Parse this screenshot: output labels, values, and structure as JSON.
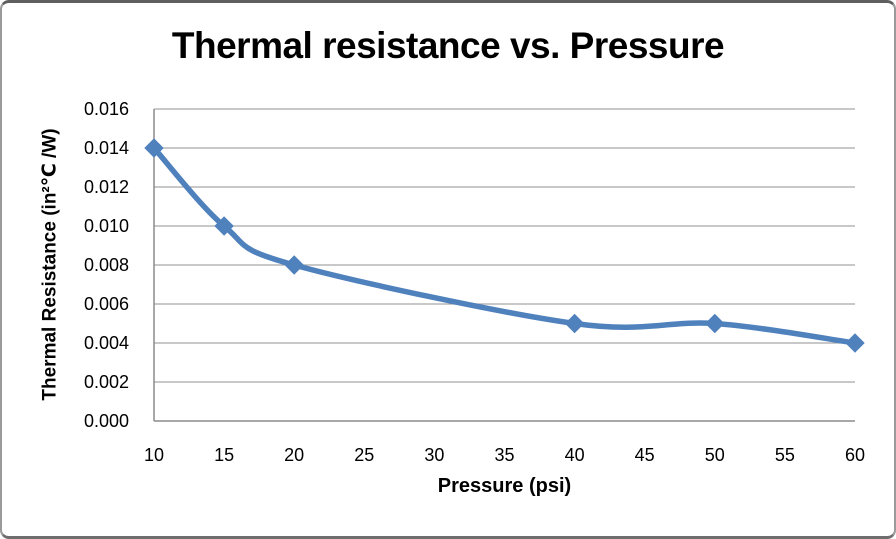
{
  "chart_data": {
    "type": "line",
    "title": "Thermal resistance vs. Pressure",
    "xlabel": "Pressure (psi)",
    "ylabel": "Thermal Resistance (in²℃ /W)",
    "x": [
      10,
      15,
      20,
      40,
      50,
      60
    ],
    "y": [
      0.014,
      0.01,
      0.008,
      0.005,
      0.005,
      0.004
    ],
    "x_ticks": [
      10,
      15,
      20,
      25,
      30,
      35,
      40,
      45,
      50,
      55,
      60
    ],
    "y_tick_labels": [
      "0.000",
      "0.002",
      "0.004",
      "0.006",
      "0.008",
      "0.010",
      "0.012",
      "0.014",
      "0.016"
    ],
    "xlim": [
      10,
      60
    ],
    "ylim": [
      0,
      0.016
    ],
    "grid": "horizontal",
    "legend": "none",
    "line_style": "smooth",
    "marker": "diamond",
    "colors": {
      "series": "#4F81BD",
      "gridline": "#A6A6A6",
      "axis": "#8C8C8C",
      "text": "#000000",
      "background": "#FFFFFF"
    }
  }
}
